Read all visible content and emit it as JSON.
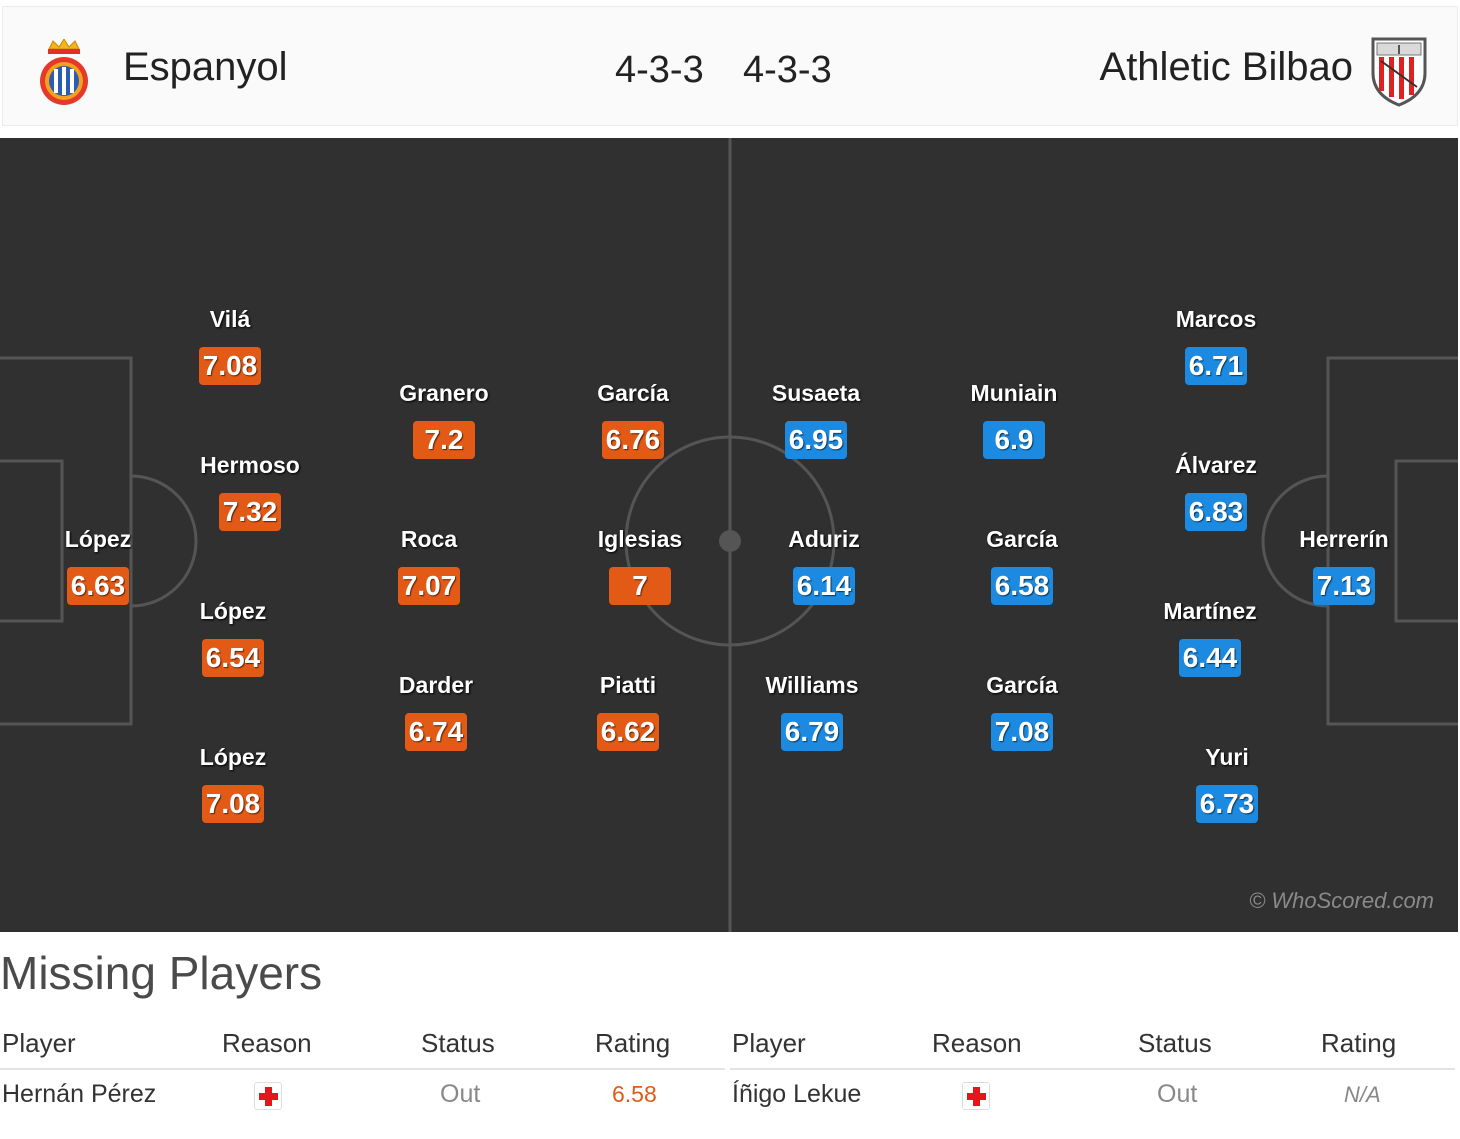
{
  "header": {
    "home_team": "Espanyol",
    "home_formation": "4-3-3",
    "away_formation": "4-3-3",
    "away_team": "Athletic Bilbao"
  },
  "colors": {
    "home_rating": "#e25a16",
    "away_rating": "#1b8ae0",
    "pitch": "#303030"
  },
  "pitch": {
    "watermark": "© WhoScored.com",
    "home_players": [
      {
        "name": "López",
        "rating": "6.63"
      },
      {
        "name": "Vilá",
        "rating": "7.08"
      },
      {
        "name": "Hermoso",
        "rating": "7.32"
      },
      {
        "name": "López",
        "rating": "6.54"
      },
      {
        "name": "López",
        "rating": "7.08"
      },
      {
        "name": "Granero",
        "rating": "7.2"
      },
      {
        "name": "Roca",
        "rating": "7.07"
      },
      {
        "name": "Darder",
        "rating": "6.74"
      },
      {
        "name": "García",
        "rating": "6.76"
      },
      {
        "name": "Iglesias",
        "rating": "7"
      },
      {
        "name": "Piatti",
        "rating": "6.62"
      }
    ],
    "away_players": [
      {
        "name": "Susaeta",
        "rating": "6.95"
      },
      {
        "name": "Aduriz",
        "rating": "6.14"
      },
      {
        "name": "Williams",
        "rating": "6.79"
      },
      {
        "name": "Muniain",
        "rating": "6.9"
      },
      {
        "name": "García",
        "rating": "6.58"
      },
      {
        "name": "García",
        "rating": "7.08"
      },
      {
        "name": "Marcos",
        "rating": "6.71"
      },
      {
        "name": "Álvarez",
        "rating": "6.83"
      },
      {
        "name": "Martínez",
        "rating": "6.44"
      },
      {
        "name": "Yuri",
        "rating": "6.73"
      },
      {
        "name": "Herrerín",
        "rating": "7.13"
      }
    ]
  },
  "missing": {
    "title": "Missing Players",
    "columns": [
      "Player",
      "Reason",
      "Status",
      "Rating"
    ],
    "home": [
      {
        "player": "Hernán Pérez",
        "reason_icon": "injury-icon",
        "status": "Out",
        "rating": "6.58"
      }
    ],
    "away": [
      {
        "player": "Íñigo Lekue",
        "reason_icon": "injury-icon",
        "status": "Out",
        "rating": "N/A"
      }
    ]
  }
}
